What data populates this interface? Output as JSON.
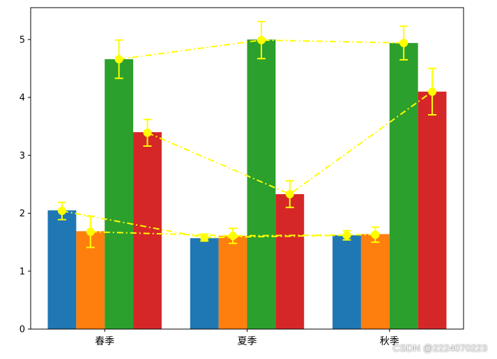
{
  "chart_data": {
    "type": "bar",
    "categories": [
      "春季",
      "夏季",
      "秋季"
    ],
    "series": [
      {
        "values": [
          2.05,
          1.57,
          1.62
        ],
        "color": "#1f77b4"
      },
      {
        "values": [
          1.69,
          1.61,
          1.64
        ],
        "color": "#ff7f0e"
      },
      {
        "values": [
          4.66,
          5.0,
          4.94
        ],
        "color": "#2ca02c"
      },
      {
        "values": [
          3.4,
          2.33,
          4.1
        ],
        "color": "#d62728"
      }
    ],
    "overlay_line": {
      "color": "#ffff00",
      "style": "dash-dot",
      "marker": "circle",
      "series": [
        {
          "values": [
            2.04,
            1.58,
            1.62
          ],
          "errors": [
            0.15,
            0.06,
            0.08
          ]
        },
        {
          "values": [
            1.68,
            1.61,
            1.63
          ],
          "errors": [
            0.27,
            0.13,
            0.13
          ]
        },
        {
          "values": [
            4.66,
            4.99,
            4.94
          ],
          "errors": [
            0.33,
            0.32,
            0.29
          ]
        },
        {
          "values": [
            3.39,
            2.33,
            4.1
          ],
          "errors": [
            0.23,
            0.23,
            0.4
          ]
        }
      ]
    },
    "ylim": [
      0,
      5.55
    ],
    "yticks": [
      0,
      1,
      2,
      3,
      4,
      5
    ],
    "title": "",
    "xlabel": "",
    "ylabel": "",
    "grid": false,
    "legend": "none"
  },
  "watermark": "CSDN @2224070223"
}
